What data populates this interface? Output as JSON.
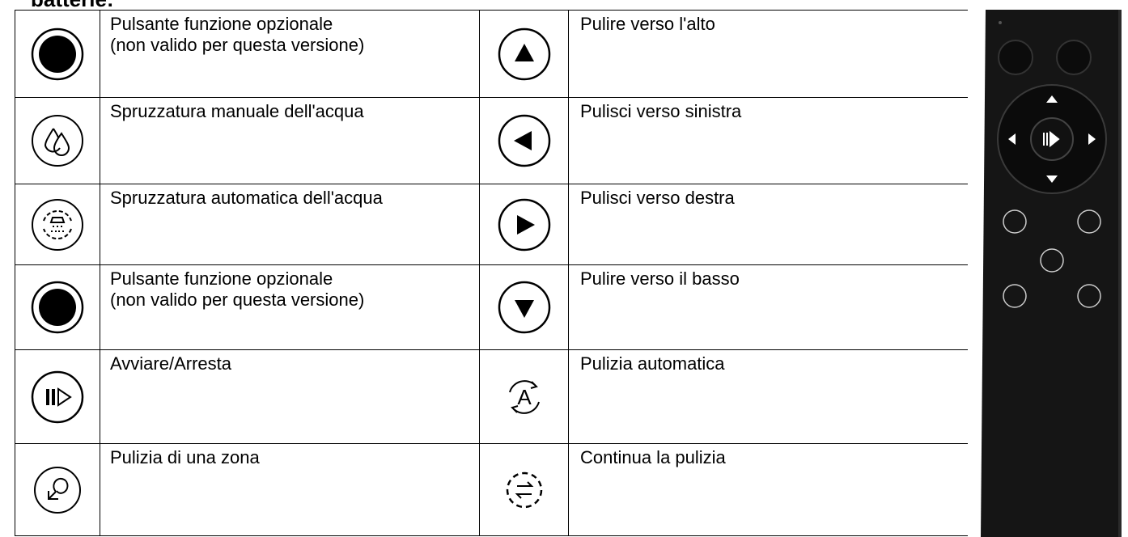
{
  "heading": "batterie:",
  "table": {
    "rows": [
      [
        "Pulsante funzione opzionale\n(non valido per questa versione)",
        "Pulire verso l'alto"
      ],
      [
        "Spruzzatura manuale dell'acqua",
        "Pulisci verso sinistra"
      ],
      [
        "Spruzzatura automatica dell'acqua",
        "Pulisci verso destra"
      ],
      [
        "Pulsante funzione opzionale\n(non valido per questa versione)",
        "Pulire verso il basso"
      ],
      [
        "Avviare/Arresta",
        "Pulizia automatica"
      ],
      [
        "Pulizia di una zona",
        "Continua la pulizia"
      ]
    ]
  }
}
